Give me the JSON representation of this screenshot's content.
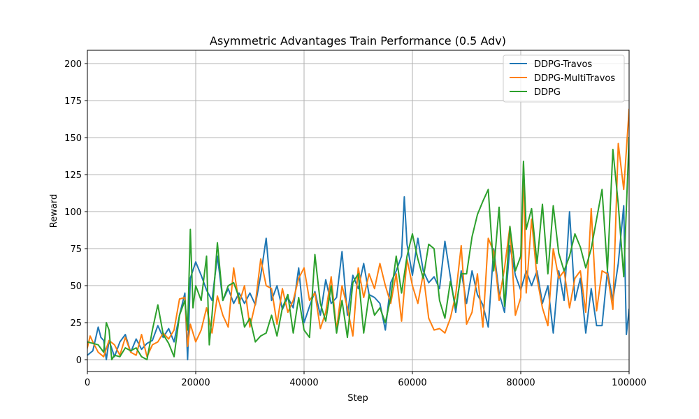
{
  "chart_data": {
    "type": "line",
    "title": "Asymmetric Advantages Train Performance (0.5 Adv)",
    "xlabel": "Step",
    "ylabel": "Reward",
    "xlim": [
      0,
      100000
    ],
    "ylim": [
      -8,
      209
    ],
    "xticks": [
      0,
      20000,
      40000,
      60000,
      80000,
      100000
    ],
    "xtick_labels": [
      "0",
      "20000",
      "40000",
      "60000",
      "80000",
      "100000"
    ],
    "yticks": [
      0,
      25,
      50,
      75,
      100,
      125,
      150,
      175,
      200
    ],
    "ytick_labels": [
      "0",
      "25",
      "50",
      "75",
      "100",
      "125",
      "150",
      "175",
      "200"
    ],
    "grid": true,
    "legend_position": "top-right",
    "series": [
      {
        "name": "DDPG-Travos",
        "color": "#1f77b4",
        "points": [
          [
            0,
            3
          ],
          [
            1000,
            6
          ],
          [
            2000,
            22
          ],
          [
            2500,
            15
          ],
          [
            3000,
            13
          ],
          [
            3500,
            0
          ],
          [
            4000,
            13
          ],
          [
            5000,
            2
          ],
          [
            6000,
            12
          ],
          [
            7000,
            17
          ],
          [
            8000,
            5
          ],
          [
            9000,
            14
          ],
          [
            10000,
            7
          ],
          [
            11000,
            11
          ],
          [
            12000,
            13
          ],
          [
            13000,
            23
          ],
          [
            14000,
            15
          ],
          [
            15000,
            21
          ],
          [
            16000,
            12
          ],
          [
            17000,
            30
          ],
          [
            18000,
            45
          ],
          [
            18500,
            0
          ],
          [
            19000,
            55
          ],
          [
            20000,
            66
          ],
          [
            21000,
            57
          ],
          [
            22000,
            47
          ],
          [
            23000,
            40
          ],
          [
            24000,
            70
          ],
          [
            25000,
            40
          ],
          [
            26000,
            48
          ],
          [
            27000,
            38
          ],
          [
            28000,
            45
          ],
          [
            29000,
            38
          ],
          [
            30000,
            45
          ],
          [
            31000,
            37
          ],
          [
            32000,
            57
          ],
          [
            33000,
            82
          ],
          [
            34000,
            40
          ],
          [
            35000,
            50
          ],
          [
            36000,
            34
          ],
          [
            37000,
            42
          ],
          [
            38000,
            35
          ],
          [
            39000,
            62
          ],
          [
            40000,
            25
          ],
          [
            41000,
            36
          ],
          [
            42000,
            46
          ],
          [
            43000,
            30
          ],
          [
            44000,
            54
          ],
          [
            45000,
            38
          ],
          [
            46000,
            42
          ],
          [
            47000,
            73
          ],
          [
            48000,
            30
          ],
          [
            49000,
            57
          ],
          [
            50000,
            48
          ],
          [
            51000,
            65
          ],
          [
            52000,
            44
          ],
          [
            53000,
            42
          ],
          [
            54000,
            38
          ],
          [
            55000,
            20
          ],
          [
            56000,
            52
          ],
          [
            57000,
            60
          ],
          [
            58000,
            70
          ],
          [
            58500,
            110
          ],
          [
            59000,
            78
          ],
          [
            60000,
            57
          ],
          [
            61000,
            82
          ],
          [
            62000,
            60
          ],
          [
            63000,
            52
          ],
          [
            64000,
            56
          ],
          [
            65000,
            48
          ],
          [
            66000,
            80
          ],
          [
            67000,
            56
          ],
          [
            68000,
            32
          ],
          [
            69000,
            60
          ],
          [
            70000,
            38
          ],
          [
            71000,
            60
          ],
          [
            72000,
            44
          ],
          [
            73000,
            37
          ],
          [
            74000,
            22
          ],
          [
            75000,
            75
          ],
          [
            76000,
            45
          ],
          [
            77000,
            32
          ],
          [
            78000,
            77
          ],
          [
            79000,
            57
          ],
          [
            80000,
            47
          ],
          [
            81000,
            60
          ],
          [
            82000,
            50
          ],
          [
            83000,
            60
          ],
          [
            84000,
            38
          ],
          [
            85000,
            50
          ],
          [
            86000,
            18
          ],
          [
            87000,
            60
          ],
          [
            88000,
            40
          ],
          [
            89000,
            100
          ],
          [
            90000,
            40
          ],
          [
            91000,
            55
          ],
          [
            92000,
            18
          ],
          [
            93000,
            48
          ],
          [
            94000,
            23
          ],
          [
            95000,
            23
          ],
          [
            96000,
            60
          ],
          [
            97000,
            40
          ],
          [
            98000,
            65
          ],
          [
            99000,
            104
          ],
          [
            99500,
            17
          ],
          [
            100000,
            34
          ]
        ]
      },
      {
        "name": "DDPG-MultiTravos",
        "color": "#ff7f0e",
        "points": [
          [
            0,
            8
          ],
          [
            500,
            16
          ],
          [
            1000,
            12
          ],
          [
            2000,
            5
          ],
          [
            3000,
            2
          ],
          [
            4000,
            13
          ],
          [
            5000,
            10
          ],
          [
            6000,
            3
          ],
          [
            7000,
            15
          ],
          [
            8000,
            5
          ],
          [
            9000,
            3
          ],
          [
            10000,
            17
          ],
          [
            11000,
            2
          ],
          [
            12000,
            10
          ],
          [
            13000,
            12
          ],
          [
            14000,
            18
          ],
          [
            15000,
            14
          ],
          [
            16000,
            20
          ],
          [
            17000,
            41
          ],
          [
            18000,
            42
          ],
          [
            18500,
            9
          ],
          [
            19000,
            24
          ],
          [
            20000,
            12
          ],
          [
            21000,
            20
          ],
          [
            22000,
            35
          ],
          [
            23000,
            18
          ],
          [
            24000,
            43
          ],
          [
            25000,
            30
          ],
          [
            26000,
            22
          ],
          [
            27000,
            62
          ],
          [
            28000,
            38
          ],
          [
            29000,
            50
          ],
          [
            30000,
            22
          ],
          [
            31000,
            38
          ],
          [
            32000,
            68
          ],
          [
            33000,
            50
          ],
          [
            34000,
            48
          ],
          [
            35000,
            24
          ],
          [
            36000,
            48
          ],
          [
            37000,
            32
          ],
          [
            38000,
            40
          ],
          [
            39000,
            55
          ],
          [
            40000,
            62
          ],
          [
            41000,
            40
          ],
          [
            42000,
            45
          ],
          [
            43000,
            21
          ],
          [
            44000,
            32
          ],
          [
            45000,
            56
          ],
          [
            46000,
            20
          ],
          [
            47000,
            50
          ],
          [
            48000,
            35
          ],
          [
            49000,
            16
          ],
          [
            50000,
            62
          ],
          [
            51000,
            42
          ],
          [
            52000,
            58
          ],
          [
            53000,
            48
          ],
          [
            54000,
            65
          ],
          [
            55000,
            50
          ],
          [
            56000,
            38
          ],
          [
            57000,
            58
          ],
          [
            58000,
            26
          ],
          [
            59000,
            68
          ],
          [
            60000,
            50
          ],
          [
            61000,
            38
          ],
          [
            62000,
            58
          ],
          [
            63000,
            28
          ],
          [
            64000,
            20
          ],
          [
            65000,
            21
          ],
          [
            66000,
            18
          ],
          [
            67000,
            28
          ],
          [
            68000,
            44
          ],
          [
            69000,
            77
          ],
          [
            70000,
            24
          ],
          [
            71000,
            32
          ],
          [
            72000,
            58
          ],
          [
            73000,
            22
          ],
          [
            74000,
            82
          ],
          [
            75000,
            73
          ],
          [
            76000,
            40
          ],
          [
            77000,
            62
          ],
          [
            78000,
            90
          ],
          [
            79000,
            30
          ],
          [
            80000,
            42
          ],
          [
            80500,
            132
          ],
          [
            81000,
            45
          ],
          [
            82000,
            95
          ],
          [
            83000,
            55
          ],
          [
            84000,
            35
          ],
          [
            85000,
            23
          ],
          [
            86000,
            75
          ],
          [
            87000,
            55
          ],
          [
            88000,
            60
          ],
          [
            89000,
            35
          ],
          [
            90000,
            55
          ],
          [
            91000,
            60
          ],
          [
            92000,
            32
          ],
          [
            93000,
            102
          ],
          [
            94000,
            33
          ],
          [
            95000,
            60
          ],
          [
            96000,
            58
          ],
          [
            97000,
            34
          ],
          [
            98000,
            146
          ],
          [
            99000,
            115
          ],
          [
            100000,
            169
          ]
        ]
      },
      {
        "name": "DDPG",
        "color": "#2ca02c",
        "points": [
          [
            0,
            12
          ],
          [
            1000,
            11
          ],
          [
            2000,
            10
          ],
          [
            3000,
            5
          ],
          [
            3500,
            25
          ],
          [
            4000,
            20
          ],
          [
            4500,
            0
          ],
          [
            5000,
            3
          ],
          [
            6000,
            2
          ],
          [
            7000,
            8
          ],
          [
            8000,
            6
          ],
          [
            9000,
            8
          ],
          [
            10000,
            2
          ],
          [
            11000,
            0
          ],
          [
            12000,
            20
          ],
          [
            13000,
            37
          ],
          [
            14000,
            17
          ],
          [
            15000,
            11
          ],
          [
            16000,
            2
          ],
          [
            17000,
            30
          ],
          [
            18000,
            40
          ],
          [
            18500,
            20
          ],
          [
            19000,
            88
          ],
          [
            19500,
            35
          ],
          [
            20000,
            50
          ],
          [
            21000,
            40
          ],
          [
            22000,
            70
          ],
          [
            22500,
            10
          ],
          [
            23000,
            30
          ],
          [
            24000,
            79
          ],
          [
            25000,
            40
          ],
          [
            26000,
            50
          ],
          [
            27000,
            52
          ],
          [
            28000,
            42
          ],
          [
            29000,
            22
          ],
          [
            30000,
            28
          ],
          [
            31000,
            12
          ],
          [
            32000,
            16
          ],
          [
            33000,
            18
          ],
          [
            34000,
            30
          ],
          [
            35000,
            16
          ],
          [
            36000,
            35
          ],
          [
            37000,
            44
          ],
          [
            38000,
            18
          ],
          [
            39000,
            42
          ],
          [
            40000,
            20
          ],
          [
            41000,
            15
          ],
          [
            42000,
            71
          ],
          [
            43000,
            38
          ],
          [
            44000,
            26
          ],
          [
            45000,
            50
          ],
          [
            46000,
            18
          ],
          [
            47000,
            40
          ],
          [
            48000,
            15
          ],
          [
            49000,
            52
          ],
          [
            50000,
            58
          ],
          [
            51000,
            18
          ],
          [
            52000,
            44
          ],
          [
            53000,
            30
          ],
          [
            54000,
            35
          ],
          [
            55000,
            25
          ],
          [
            56000,
            42
          ],
          [
            57000,
            70
          ],
          [
            58000,
            45
          ],
          [
            59000,
            70
          ],
          [
            60000,
            85
          ],
          [
            61000,
            68
          ],
          [
            62000,
            55
          ],
          [
            63000,
            78
          ],
          [
            64000,
            75
          ],
          [
            65000,
            40
          ],
          [
            66000,
            28
          ],
          [
            67000,
            53
          ],
          [
            68000,
            35
          ],
          [
            69000,
            58
          ],
          [
            70000,
            58
          ],
          [
            71000,
            83
          ],
          [
            72000,
            98
          ],
          [
            73000,
            107
          ],
          [
            74000,
            115
          ],
          [
            75000,
            60
          ],
          [
            76000,
            103
          ],
          [
            77000,
            36
          ],
          [
            78000,
            90
          ],
          [
            79000,
            60
          ],
          [
            80000,
            70
          ],
          [
            80500,
            134
          ],
          [
            81000,
            88
          ],
          [
            82000,
            102
          ],
          [
            83000,
            65
          ],
          [
            84000,
            105
          ],
          [
            85000,
            58
          ],
          [
            86000,
            104
          ],
          [
            87000,
            72
          ],
          [
            88000,
            60
          ],
          [
            89000,
            70
          ],
          [
            90000,
            85
          ],
          [
            91000,
            76
          ],
          [
            92000,
            62
          ],
          [
            93000,
            75
          ],
          [
            94000,
            95
          ],
          [
            95000,
            115
          ],
          [
            96000,
            60
          ],
          [
            97000,
            142
          ],
          [
            98000,
            105
          ],
          [
            99000,
            56
          ],
          [
            100000,
            150
          ]
        ]
      }
    ]
  }
}
